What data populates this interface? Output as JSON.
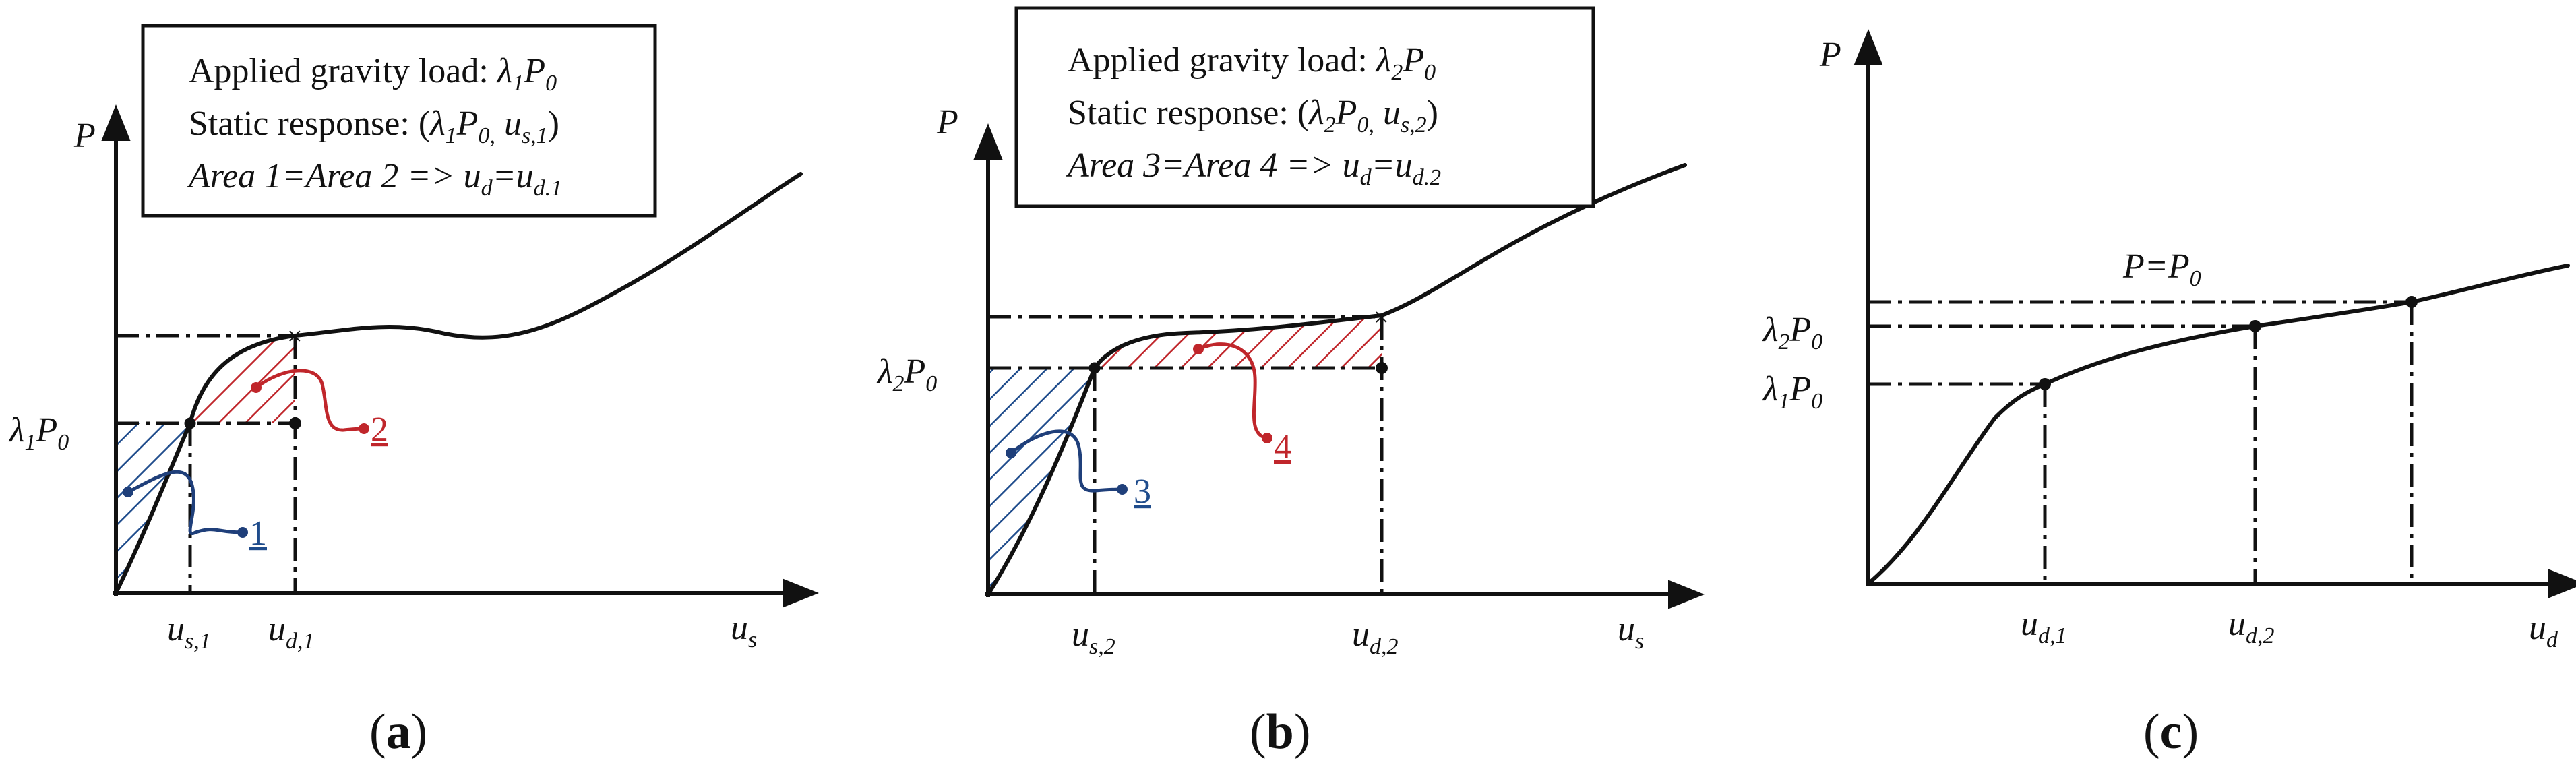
{
  "panels": {
    "a": {
      "box_lines": [
        {
          "text": "Applied gravity load: ",
          "math": "λ",
          "sub1": "1",
          "tail": "P",
          "sub2": "0"
        },
        {
          "text": "Static response: (",
          "math": "λ",
          "sub1": "1",
          "tail": "P",
          "sub2": "0,"
        },
        {
          "text": "Area 1=Area 2 => u",
          "sub1": "d",
          "tail": "=u",
          "sub2": "d.1"
        }
      ],
      "y_axis": "P",
      "x_axis": "u",
      "x_axis_sub": "s",
      "y_tick": {
        "main": "λ",
        "sub1": "1",
        "main2": "P",
        "sub2": "0"
      },
      "x_ticks": [
        {
          "main": "u",
          "sub": "s,1"
        },
        {
          "main": "u",
          "sub": "d,1"
        }
      ],
      "areas": [
        "1",
        "2"
      ],
      "caption_open": "(",
      "caption_letter": "a",
      "caption_close": ")"
    },
    "b": {
      "box_lines": [
        {
          "text": "Applied gravity load: ",
          "math": "λ",
          "sub1": "2",
          "tail": "P",
          "sub2": "0"
        },
        {
          "text": "Static response: (",
          "math": "λ",
          "sub1": "2",
          "tail": "P",
          "sub2": "0,"
        },
        {
          "text": "Area 3=Area 4 => u",
          "sub1": "d",
          "tail": "=u",
          "sub2": "d.2"
        }
      ],
      "y_axis": "P",
      "x_axis": "u",
      "x_axis_sub": "s",
      "y_tick": {
        "main": "λ",
        "sub1": "2",
        "main2": "P",
        "sub2": "0"
      },
      "x_ticks": [
        {
          "main": "u",
          "sub": "s,2"
        },
        {
          "main": "u",
          "sub": "d,2"
        }
      ],
      "areas": [
        "3",
        "4"
      ],
      "caption_open": "(",
      "caption_letter": "b",
      "caption_close": ")"
    },
    "c": {
      "y_axis": "P",
      "x_axis": "u",
      "x_axis_sub": "d",
      "annotation": {
        "main": "P=P",
        "sub": "0"
      },
      "y_ticks": [
        {
          "main": "λ",
          "sub1": "2",
          "main2": "P",
          "sub2": "0"
        },
        {
          "main": "λ",
          "sub1": "1",
          "main2": "P",
          "sub2": "0"
        }
      ],
      "x_ticks": [
        {
          "main": "u",
          "sub": "d,1"
        },
        {
          "main": "u",
          "sub": "d,2"
        }
      ],
      "caption_open": "(",
      "caption_letter": "c",
      "caption_close": ")"
    }
  },
  "static_response_extra": {
    "a": {
      "u": "u",
      "sub": "s,1",
      "close": ")"
    },
    "b": {
      "u": "u",
      "sub": "s,2",
      "close": ")"
    }
  },
  "colors": {
    "blue_area": "#1f4c8c",
    "red_area": "#c0262b",
    "line": "#111111"
  }
}
